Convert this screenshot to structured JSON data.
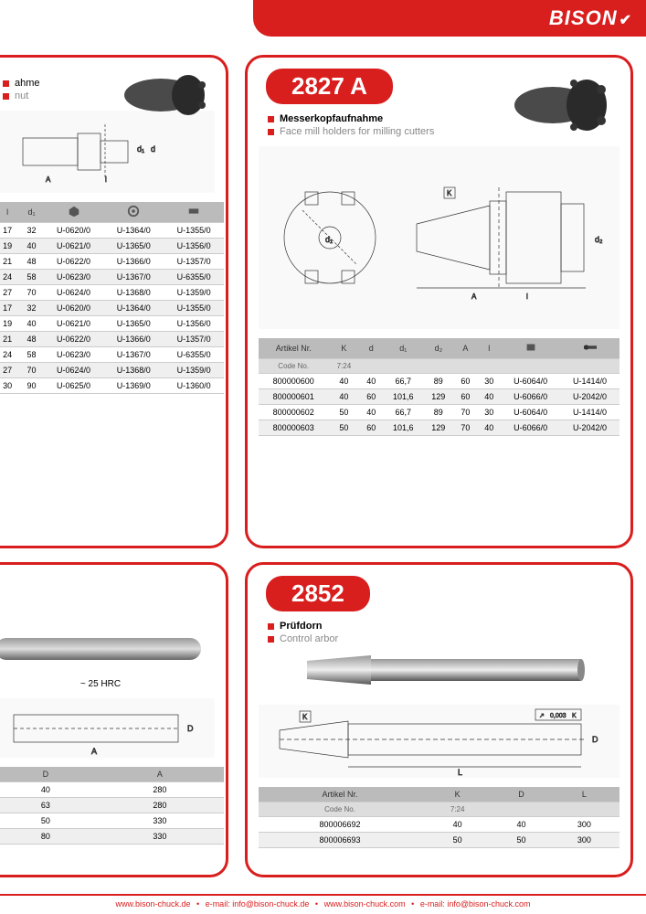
{
  "brand": "BISON",
  "colors": {
    "accent": "#d91e1e",
    "gray": "#888888",
    "header_bg": "#bbbbbb",
    "alt_row": "#efefef"
  },
  "footer": {
    "url1": "www.bison-chuck.de",
    "email1_label": "e-mail:",
    "email1": "info@bison-chuck.de",
    "url2": "www.bison-chuck.com",
    "email2_label": "e-mail:",
    "email2": "info@bison-chuck.com"
  },
  "panel_tl": {
    "sub1": "ahme",
    "sub2": "nut",
    "table": {
      "headers": [
        "l",
        "d₁",
        "⬢",
        "⬡",
        "▬"
      ],
      "rows": [
        [
          "17",
          "32",
          "U-0620/0",
          "U-1364/0",
          "U-1355/0"
        ],
        [
          "19",
          "40",
          "U-0621/0",
          "U-1365/0",
          "U-1356/0"
        ],
        [
          "21",
          "48",
          "U-0622/0",
          "U-1366/0",
          "U-1357/0"
        ],
        [
          "24",
          "58",
          "U-0623/0",
          "U-1367/0",
          "U-6355/0"
        ],
        [
          "27",
          "70",
          "U-0624/0",
          "U-1368/0",
          "U-1359/0"
        ],
        [
          "17",
          "32",
          "U-0620/0",
          "U-1364/0",
          "U-1355/0"
        ],
        [
          "19",
          "40",
          "U-0621/0",
          "U-1365/0",
          "U-1356/0"
        ],
        [
          "21",
          "48",
          "U-0622/0",
          "U-1366/0",
          "U-1357/0"
        ],
        [
          "24",
          "58",
          "U-0623/0",
          "U-1367/0",
          "U-6355/0"
        ],
        [
          "27",
          "70",
          "U-0624/0",
          "U-1368/0",
          "U-1359/0"
        ],
        [
          "30",
          "90",
          "U-0625/0",
          "U-1369/0",
          "U-1360/0"
        ]
      ]
    }
  },
  "panel_tr": {
    "badge": "2827 A",
    "sub1": "Messerkopfaufnahme",
    "sub2": "Face mill holders for milling cutters",
    "table": {
      "header1": [
        "Artikel Nr.",
        "K",
        "d",
        "d₁",
        "d₂",
        "A",
        "l",
        "",
        ""
      ],
      "header2": [
        "Code No.",
        "7:24",
        "",
        "",
        "",
        "",
        "",
        "",
        ""
      ],
      "rows": [
        [
          "800000600",
          "40",
          "40",
          "66,7",
          "89",
          "60",
          "30",
          "U-6064/0",
          "U-1414/0"
        ],
        [
          "800000601",
          "40",
          "60",
          "101,6",
          "129",
          "60",
          "40",
          "U-6066/0",
          "U-2042/0"
        ],
        [
          "800000602",
          "50",
          "40",
          "66,7",
          "89",
          "70",
          "30",
          "U-6064/0",
          "U-1414/0"
        ],
        [
          "800000603",
          "50",
          "60",
          "101,6",
          "129",
          "70",
          "40",
          "U-6066/0",
          "U-2042/0"
        ]
      ]
    }
  },
  "panel_bl": {
    "hrc": "~ 25 HRC",
    "table": {
      "headers": [
        "D",
        "A"
      ],
      "rows": [
        [
          "40",
          "280"
        ],
        [
          "63",
          "280"
        ],
        [
          "50",
          "330"
        ],
        [
          "80",
          "330"
        ]
      ]
    }
  },
  "panel_br": {
    "badge": "2852",
    "sub1": "Prüfdorn",
    "sub2": "Control arbor",
    "tol": "0,003",
    "tolref": "K",
    "table": {
      "header1": [
        "Artikel Nr.",
        "K",
        "D",
        "L"
      ],
      "header2": [
        "Code No.",
        "7:24",
        "",
        ""
      ],
      "rows": [
        [
          "800006692",
          "40",
          "40",
          "300"
        ],
        [
          "800006693",
          "50",
          "50",
          "300"
        ]
      ]
    }
  }
}
